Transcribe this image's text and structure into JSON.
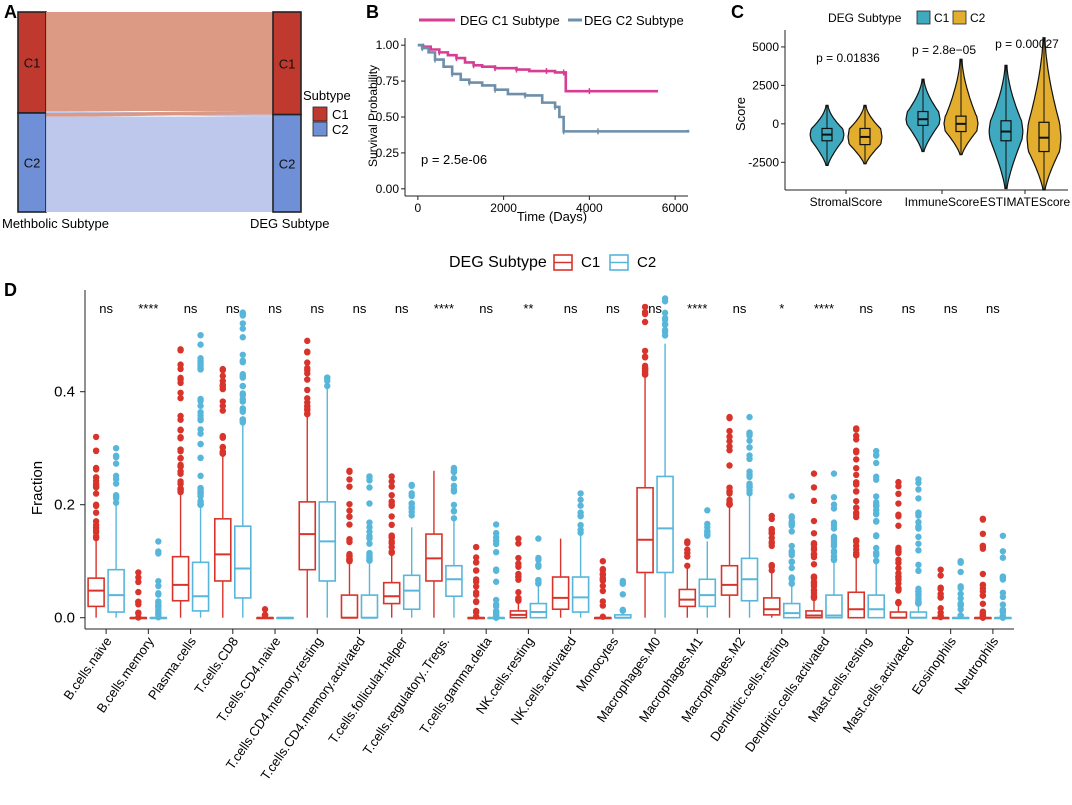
{
  "panel_labels": [
    "A",
    "B",
    "C",
    "D"
  ],
  "colors": {
    "c1_red": "#c0392f",
    "c2_blue": "#6f8fd6",
    "flow_c1": "#d9907a",
    "flow_c2": "#b9c3ea",
    "km_c1": "#d63d93",
    "km_c2": "#6e8faa",
    "violin_c1": "#3fa9bf",
    "violin_c2": "#e3ad2d",
    "box_c1": "#d8342b",
    "box_c2": "#57b6da"
  },
  "chart_data": [
    {
      "panel": "A",
      "type": "alluvial",
      "left_axis_label": "Methbolic Subtype",
      "right_axis_label": "DEG Subtype",
      "left_strata": [
        {
          "label": "C1",
          "fraction": 0.505
        },
        {
          "label": "C2",
          "fraction": 0.495
        }
      ],
      "right_strata": [
        {
          "label": "C1",
          "fraction": 0.513
        },
        {
          "label": "C2",
          "fraction": 0.487
        }
      ],
      "flows": [
        {
          "from": "C1",
          "to": "C1",
          "fraction": 0.495
        },
        {
          "from": "C1",
          "to": "C2",
          "fraction": 0.01
        },
        {
          "from": "C2",
          "to": "C1",
          "fraction": 0.018
        },
        {
          "from": "C2",
          "to": "C2",
          "fraction": 0.477
        }
      ],
      "legend": {
        "title": "Subtype",
        "items": [
          "C1",
          "C2"
        ]
      }
    },
    {
      "panel": "B",
      "type": "line",
      "subtype": "kaplan-meier",
      "legend": [
        "DEG C1 Subtype",
        "DEG C2 Subtype"
      ],
      "xlabel": "Time (Days)",
      "ylabel": "Survival Probability",
      "xlim": [
        -300,
        6300
      ],
      "ylim": [
        -0.05,
        1.05
      ],
      "xticks": [
        "0",
        "2000",
        "4000",
        "6000"
      ],
      "yticks": [
        "0.00",
        "0.25",
        "0.50",
        "0.75",
        "1.00"
      ],
      "annotation": "p = 2.5e-06",
      "series": [
        {
          "name": "DEG C1 Subtype",
          "x": [
            0,
            120,
            300,
            500,
            700,
            900,
            1100,
            1300,
            1500,
            1800,
            2000,
            2300,
            2600,
            3000,
            3200,
            3400,
            3450,
            4000,
            5000,
            5600
          ],
          "y": [
            1.0,
            0.99,
            0.97,
            0.95,
            0.93,
            0.91,
            0.88,
            0.86,
            0.85,
            0.84,
            0.84,
            0.83,
            0.82,
            0.82,
            0.81,
            0.81,
            0.68,
            0.68,
            0.68,
            0.68
          ]
        },
        {
          "name": "DEG C2 Subtype",
          "x": [
            0,
            100,
            250,
            400,
            600,
            800,
            1000,
            1200,
            1500,
            1800,
            2100,
            2500,
            2900,
            3200,
            3300,
            3400,
            3600,
            4200,
            5000,
            6300
          ],
          "y": [
            1.0,
            0.98,
            0.95,
            0.9,
            0.85,
            0.8,
            0.76,
            0.74,
            0.72,
            0.69,
            0.66,
            0.65,
            0.6,
            0.57,
            0.5,
            0.4,
            0.4,
            0.4,
            0.4,
            0.41
          ]
        }
      ]
    },
    {
      "panel": "C",
      "type": "violin",
      "legend_title": "DEG Subtype",
      "legend": [
        "C1",
        "C2"
      ],
      "ylabel": "Score",
      "ylim": [
        -4300,
        6100
      ],
      "yticks": [
        -2500,
        0,
        2500,
        5000
      ],
      "categories": [
        "StromalScore",
        "ImmuneScore",
        "ESTIMATEScore"
      ],
      "pvalues": [
        "p = 0.01836",
        "p = 2.8e−05",
        "p = 0.00027"
      ],
      "series": [
        {
          "name": "C1",
          "medians": [
            -700,
            300,
            -500
          ],
          "q1": [
            -1100,
            -100,
            -1100
          ],
          "q3": [
            -300,
            800,
            200
          ],
          "min": [
            -2700,
            -1800,
            -4200
          ],
          "max": [
            1200,
            2900,
            3800
          ]
        },
        {
          "name": "C2",
          "medians": [
            -850,
            0,
            -900
          ],
          "q1": [
            -1350,
            -500,
            -1800
          ],
          "q3": [
            -300,
            500,
            100
          ],
          "min": [
            -2600,
            -2000,
            -4300
          ],
          "max": [
            1200,
            4200,
            5600
          ]
        }
      ]
    },
    {
      "panel": "D",
      "type": "boxplot",
      "legend_title": "DEG Subtype",
      "legend": [
        "C1",
        "C2"
      ],
      "ylabel": "Fraction",
      "ylim": [
        -0.02,
        0.58
      ],
      "yticks": [
        "0.0",
        "0.2",
        "0.4"
      ],
      "categories": [
        "B.cells.naive",
        "B.cells.memory",
        "Plasma.cells",
        "T.cells.CD8",
        "T.cells.CD4.naive",
        "T.cells.CD4.memory.resting",
        "T.cells.CD4.memory.activated",
        "T.cells.follicular.helper",
        "T.cells.regulatory..Tregs.",
        "T.cells.gamma.delta",
        "NK.cells.resting",
        "NK.cells.activated",
        "Monocytes",
        "Macrophages.M0",
        "Macrophages.M1",
        "Macrophages.M2",
        "Dendritic.cells.resting",
        "Dendritic.cells.activated",
        "Mast.cells.resting",
        "Mast.cells.activated",
        "Eosinophils",
        "Neutrophils"
      ],
      "significance": [
        "ns",
        "****",
        "ns",
        "ns",
        "ns",
        "ns",
        "ns",
        "ns",
        "****",
        "ns",
        "**",
        "ns",
        "ns",
        "ns",
        "****",
        "ns",
        "*",
        "****",
        "ns",
        "ns",
        "ns",
        "ns"
      ],
      "series": [
        {
          "name": "C1",
          "q1": [
            0.02,
            0.0,
            0.03,
            0.065,
            0.0,
            0.085,
            0.0,
            0.025,
            0.065,
            0.0,
            0.0,
            0.015,
            0.0,
            0.08,
            0.02,
            0.04,
            0.005,
            0.0,
            0.0,
            0.0,
            0.0,
            0.0
          ],
          "median": [
            0.048,
            0.0,
            0.058,
            0.112,
            0.0,
            0.148,
            0.0,
            0.038,
            0.105,
            0.0,
            0.005,
            0.035,
            0.0,
            0.138,
            0.032,
            0.058,
            0.015,
            0.004,
            0.015,
            0.0,
            0.0,
            0.0
          ],
          "q3": [
            0.07,
            0.0,
            0.108,
            0.175,
            0.0,
            0.205,
            0.04,
            0.062,
            0.148,
            0.0,
            0.012,
            0.072,
            0.0,
            0.23,
            0.05,
            0.092,
            0.035,
            0.012,
            0.045,
            0.01,
            0.0,
            0.0
          ],
          "whisker_low": [
            0.0,
            0.0,
            0.0,
            0.0,
            0.0,
            0.0,
            0.0,
            0.0,
            0.0,
            0.0,
            0.0,
            0.0,
            0.0,
            0.0,
            0.0,
            0.0,
            0.0,
            0.0,
            0.0,
            0.0,
            0.0,
            0.0
          ],
          "whisker_high": [
            0.14,
            0.0,
            0.22,
            0.29,
            0.0,
            0.36,
            0.1,
            0.115,
            0.26,
            0.0,
            0.03,
            0.14,
            0.0,
            0.43,
            0.09,
            0.2,
            0.08,
            0.03,
            0.11,
            0.025,
            0.0,
            0.0
          ],
          "outlier_max": [
            0.32,
            0.08,
            0.475,
            0.44,
            0.015,
            0.49,
            0.26,
            0.25,
            0.0,
            0.125,
            0.14,
            0.0,
            0.1,
            0.55,
            0.135,
            0.355,
            0.18,
            0.255,
            0.335,
            0.24,
            0.085,
            0.175
          ]
        },
        {
          "name": "C2",
          "q1": [
            0.01,
            0.0,
            0.012,
            0.035,
            0.0,
            0.065,
            0.0,
            0.015,
            0.038,
            0.0,
            0.0,
            0.01,
            0.0,
            0.08,
            0.02,
            0.03,
            0.0,
            0.0,
            0.0,
            0.0,
            0.0,
            0.0
          ],
          "median": [
            0.04,
            0.0,
            0.038,
            0.087,
            0.0,
            0.135,
            0.0,
            0.048,
            0.068,
            0.0,
            0.01,
            0.036,
            0.0,
            0.158,
            0.04,
            0.068,
            0.008,
            0.004,
            0.015,
            0.0,
            0.0,
            0.0
          ],
          "q3": [
            0.085,
            0.0,
            0.098,
            0.162,
            0.0,
            0.205,
            0.04,
            0.075,
            0.092,
            0.0,
            0.025,
            0.072,
            0.005,
            0.25,
            0.068,
            0.105,
            0.025,
            0.04,
            0.04,
            0.01,
            0.0,
            0.0
          ],
          "whisker_low": [
            0.0,
            0.0,
            0.0,
            0.0,
            0.0,
            0.0,
            0.0,
            0.0,
            0.0,
            0.0,
            0.0,
            0.0,
            0.0,
            0.0,
            0.0,
            0.0,
            0.0,
            0.0,
            0.0,
            0.0,
            0.0,
            0.0
          ],
          "whisker_high": [
            0.2,
            0.0,
            0.2,
            0.34,
            0.0,
            0.41,
            0.1,
            0.16,
            0.175,
            0.0,
            0.06,
            0.15,
            0.012,
            0.485,
            0.135,
            0.22,
            0.06,
            0.1,
            0.1,
            0.025,
            0.0,
            0.0
          ],
          "outlier_max": [
            0.3,
            0.135,
            0.5,
            0.54,
            0.0,
            0.425,
            0.25,
            0.235,
            0.265,
            0.165,
            0.14,
            0.22,
            0.065,
            0.565,
            0.19,
            0.355,
            0.215,
            0.255,
            0.295,
            0.245,
            0.1,
            0.145
          ]
        }
      ]
    }
  ]
}
